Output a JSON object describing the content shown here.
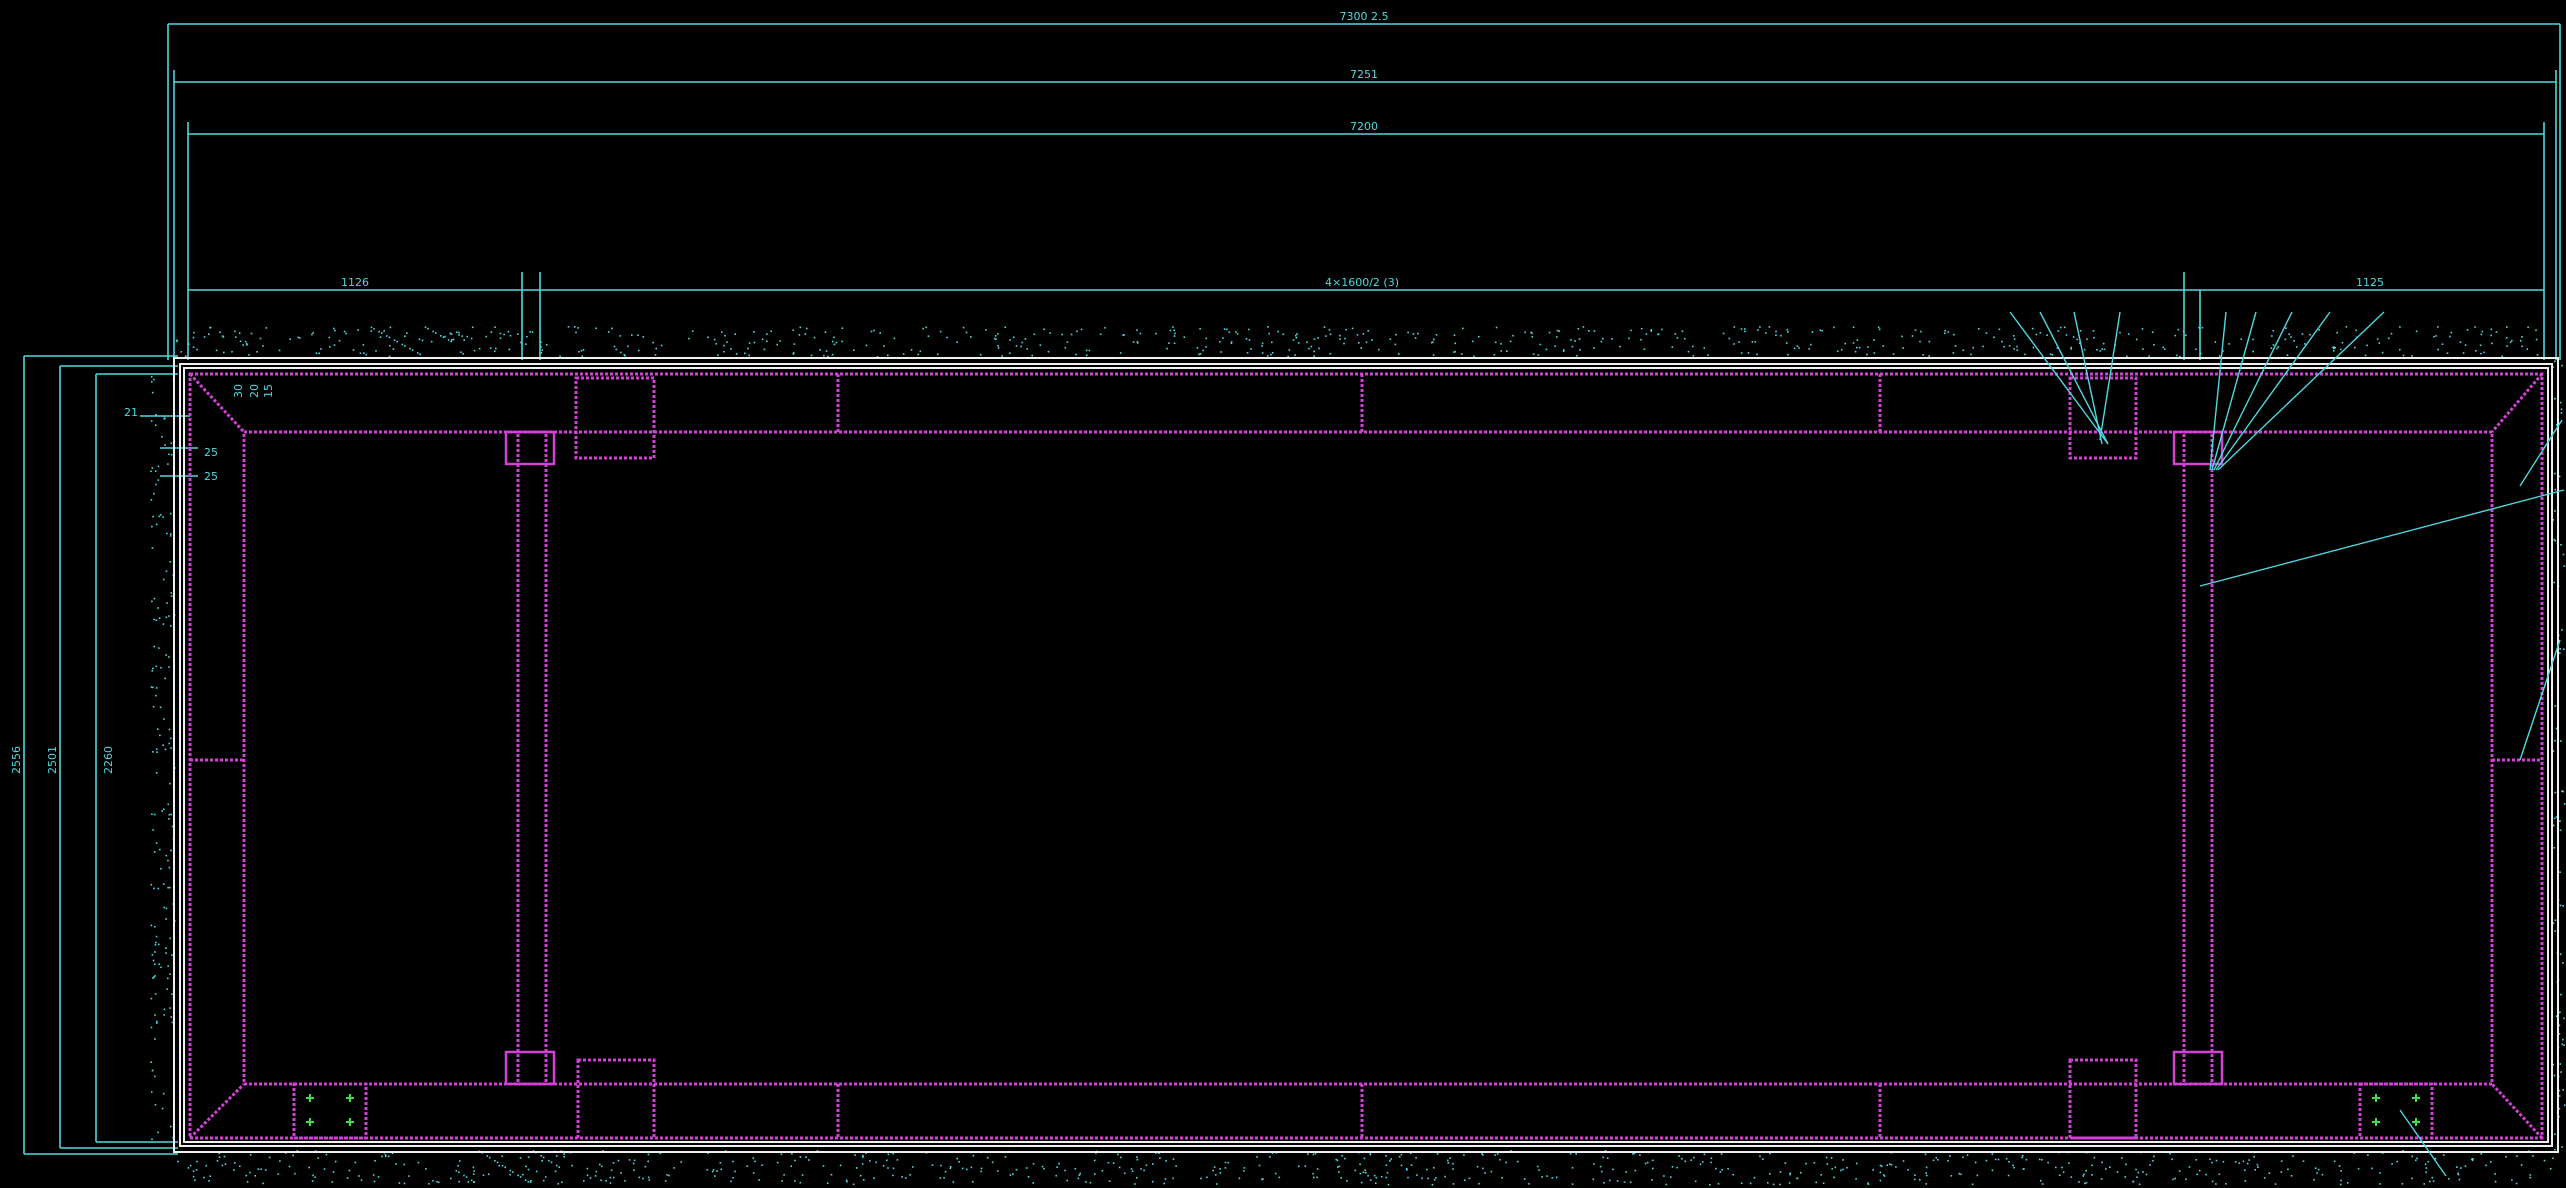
{
  "drawing": {
    "dimensions": {
      "overall_top": "7300 2.5",
      "second_top": "7251",
      "third_top": "7200",
      "left_span": "1126",
      "middle_span": "4×1600/2 (3)",
      "right_span": "1125",
      "height_outer": "2556",
      "height_mid": "2501",
      "height_inner": "2260",
      "left_small_1": "21",
      "left_small_2": "25",
      "left_small_3": "25",
      "top_small_1": "30",
      "top_small_2": "20",
      "top_small_3": "15"
    },
    "colors": {
      "background": "#000000",
      "dimension": "#4fd8e0",
      "frame": "#d240d6",
      "wall": "#f0f0f0",
      "bolt": "#3ee04a"
    }
  }
}
